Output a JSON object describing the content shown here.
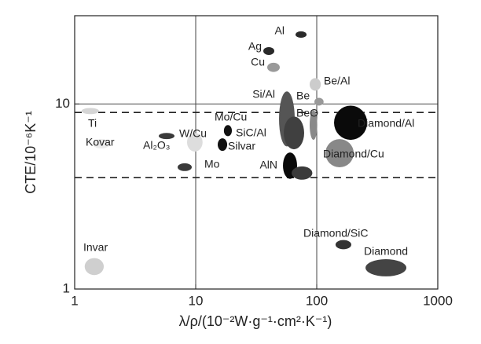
{
  "chart_data": {
    "type": "scatter",
    "x_label": "λ/ρ/(10⁻²W·g⁻¹·cm²·K⁻¹)",
    "y_label": "CTE/10⁻⁶K⁻¹",
    "xlog": true,
    "ylog": true,
    "xlim": [
      1,
      1000
    ],
    "ylim": [
      1,
      30
    ],
    "xticks": [
      1,
      10,
      100,
      1000
    ],
    "yticks": [
      1,
      10
    ],
    "grid_x": [
      10,
      100
    ],
    "grid_y": [
      10
    ],
    "reference_lines": [
      9,
      4
    ],
    "series": [
      {
        "name": "Al",
        "color": "#2a2a2a",
        "x": [
          66.8,
          82.4
        ],
        "y": [
          22.8,
          24.7
        ]
      },
      {
        "name": "Ag",
        "color": "#2a2a2a",
        "x": [
          36.2,
          44.6
        ],
        "y": [
          18.4,
          20.3
        ]
      },
      {
        "name": "Cu",
        "color": "#9a9a9a",
        "x": [
          39.0,
          49.5
        ],
        "y": [
          14.9,
          16.7
        ]
      },
      {
        "name": "Be/Al",
        "color": "#cccccc",
        "x": [
          87.4,
          108
        ],
        "y": [
          11.8,
          13.8
        ]
      },
      {
        "name": "Be",
        "color": "#999999",
        "x": [
          95.6,
          114
        ],
        "y": [
          9.8,
          10.8
        ]
      },
      {
        "name": "Si/Al",
        "color": "#555555",
        "x": [
          48.8,
          65.8
        ],
        "y": [
          5.9,
          11.7
        ]
      },
      {
        "name": "SiC/Al",
        "color": "#404040",
        "x": [
          53.4,
          78.7
        ],
        "y": [
          5.69,
          8.56
        ]
      },
      {
        "name": "BeO",
        "color": "#8a8a8a",
        "x": [
          87.4,
          101
        ],
        "y": [
          6.4,
          9.25
        ]
      },
      {
        "name": "Diamond/Al",
        "color": "#0a0a0a",
        "x": [
          139,
          261
        ],
        "y": [
          6.4,
          9.8
        ]
      },
      {
        "name": "Diamond/Cu",
        "color": "#888888",
        "x": [
          118,
          202
        ],
        "y": [
          4.55,
          6.46
        ]
      },
      {
        "name": "AlN",
        "color": "#0a0a0a",
        "x": [
          52.6,
          68.8
        ],
        "y": [
          3.94,
          5.47
        ]
      },
      {
        "name": null,
        "color": "#3a3a3a",
        "x": [
          62,
          92
        ],
        "y": [
          3.9,
          4.6
        ]
      },
      {
        "name": "Mo/Cu",
        "color": "#111111",
        "x": [
          17.1,
          19.9
        ],
        "y": [
          6.7,
          7.69
        ]
      },
      {
        "name": "Silvar",
        "color": "#111111",
        "x": [
          15.2,
          18.2
        ],
        "y": [
          5.58,
          6.52
        ]
      },
      {
        "name": "W/Cu",
        "color": "#dddddd",
        "x": [
          8.48,
          11.4
        ],
        "y": [
          5.53,
          6.98
        ]
      },
      {
        "name": "Al₂O₃",
        "color": "#3a3a3a",
        "x": [
          4.95,
          6.68
        ],
        "y": [
          6.46,
          6.98
        ]
      },
      {
        "name": "Mo",
        "color": "#3a3a3a",
        "x": [
          7.09,
          9.28
        ],
        "y": [
          4.34,
          4.78
        ]
      },
      {
        "name": "Ti",
        "color": "#d5d5d5",
        "x": [
          1.14,
          1.59
        ],
        "y": [
          8.82,
          9.52
        ]
      },
      {
        "name": "Kovar",
        "color": "#ececec",
        "x": [
          1.41,
          1.96
        ],
        "y": [
          5.75,
          6.46
        ]
      },
      {
        "name": "Invar",
        "color": "#cfcfcf",
        "x": [
          1.21,
          1.74
        ],
        "y": [
          1.19,
          1.47
        ]
      },
      {
        "name": "Diamond/SiC",
        "color": "#333333",
        "x": [
          143,
          193
        ],
        "y": [
          1.64,
          1.84
        ]
      },
      {
        "name": "Diamond",
        "color": "#444444",
        "x": [
          253,
          550
        ],
        "y": [
          1.17,
          1.45
        ]
      }
    ]
  }
}
